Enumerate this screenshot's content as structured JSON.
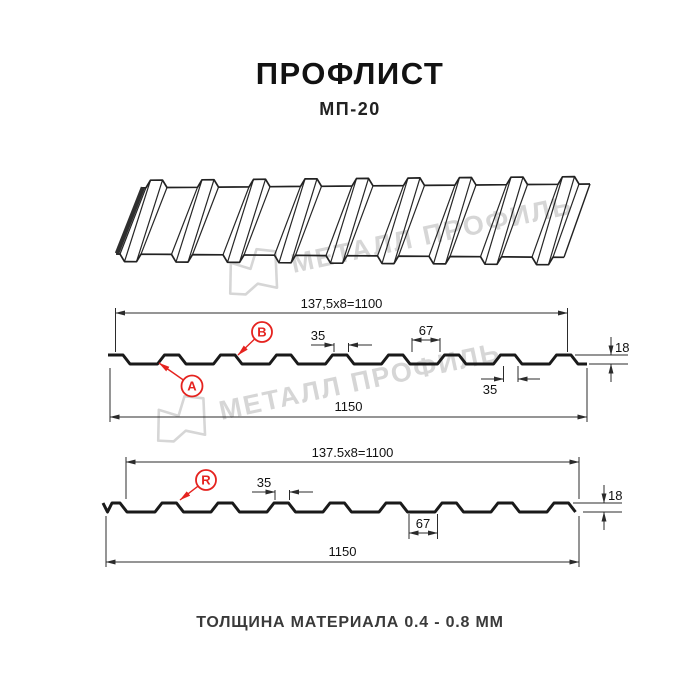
{
  "header": {
    "title": "ПРОФЛИСТ",
    "subtitle": "МП-20"
  },
  "footer": {
    "thickness_note": "ТОЛЩИНА МАТЕРИАЛА 0.4 - 0.8 ММ"
  },
  "watermark": {
    "brand": "МЕТАЛЛ ПРОФИЛЬ"
  },
  "diagram_top_view": {
    "ribs": 8,
    "dim_width_working": "137,5x8=1100",
    "dim_width_full": "1150",
    "dim_rib_top": "35",
    "dim_valley": "67",
    "dim_height": "18",
    "dim_rib_bottom": "35",
    "label_a": "A",
    "label_b": "B"
  },
  "diagram_bottom_view": {
    "ribs": 8,
    "dim_width_working": "137.5x8=1100",
    "dim_width_full": "1150",
    "dim_rib_top": "35",
    "dim_valley": "67",
    "dim_height": "18",
    "label_r": "R"
  },
  "colors": {
    "line": "#1a1a1a",
    "dim": "#2b2b2b",
    "red": "#e5231f",
    "watermark": "#d6d6d6"
  }
}
